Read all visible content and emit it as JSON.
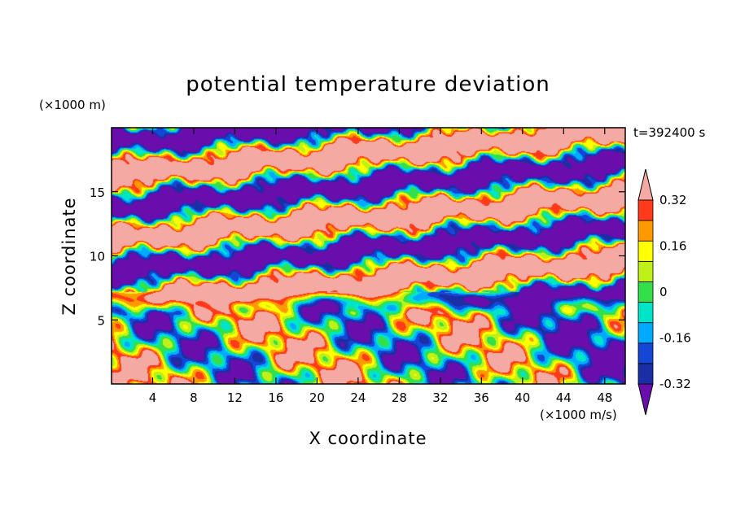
{
  "chart_data": {
    "type": "heatmap",
    "title": "potential temperature deviation",
    "xlabel": "X coordinate",
    "ylabel": "Z coordinate",
    "x_unit": "(×1000 m/s)",
    "y_unit": "(×1000 m)",
    "time_label": "t=392400 s",
    "xlim": [
      0,
      50
    ],
    "ylim": [
      0,
      20
    ],
    "x_ticks": [
      "4",
      "8",
      "12",
      "16",
      "20",
      "24",
      "28",
      "32",
      "36",
      "40",
      "44",
      "48"
    ],
    "y_ticks": [
      "5",
      "10",
      "15"
    ],
    "x_tick_values": [
      4,
      8,
      12,
      16,
      20,
      24,
      28,
      32,
      36,
      40,
      44,
      48
    ],
    "y_tick_values": [
      5,
      10,
      15
    ],
    "colorbar": {
      "labels": [
        "0.32",
        "0.16",
        "0",
        "-0.16",
        "-0.32"
      ],
      "label_values": [
        0.32,
        0.16,
        0,
        -0.16,
        -0.32
      ],
      "levels": [
        -0.4,
        -0.32,
        -0.24,
        -0.16,
        -0.08,
        0,
        0.08,
        0.16,
        0.24,
        0.32,
        0.4
      ],
      "colors": [
        "#6a0dad",
        "#1a2fa6",
        "#1447d6",
        "#00aaff",
        "#00e5c8",
        "#33e04a",
        "#bff018",
        "#ffff00",
        "#ff9900",
        "#ff3a1a",
        "#f4aaa2"
      ],
      "extend": "both"
    },
    "grid": false
  }
}
